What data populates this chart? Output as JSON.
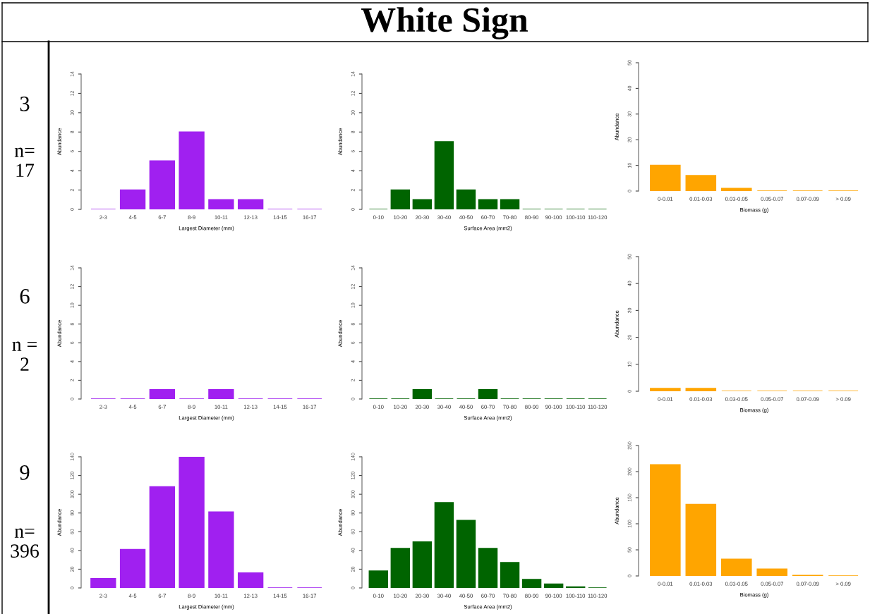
{
  "chart_data": [
    {
      "type": "bar",
      "annotations": [
        "3",
        "n= 17"
      ],
      "categories": [
        "2-3",
        "4-5",
        "6-7",
        "8-9",
        "10-11",
        "12-13",
        "14-15",
        "16-17"
      ],
      "values": [
        0,
        2,
        5,
        8,
        1,
        1,
        0,
        0
      ],
      "color": "#a020f0",
      "ylim": [
        0,
        14
      ],
      "yticks": [
        0,
        2,
        4,
        6,
        8,
        10,
        12,
        14
      ],
      "xlabel": "Largest Diameter (mm)",
      "ylabel": "Abundance"
    },
    {
      "type": "bar",
      "title": "White Sign",
      "categories": [
        "0-10",
        "10-20",
        "20-30",
        "30-40",
        "40-50",
        "60-70",
        "70-80",
        "80-90",
        "90-100",
        "100-110",
        "110-120"
      ],
      "values": [
        0,
        2,
        1,
        7,
        2,
        1,
        1,
        0,
        0,
        0,
        0
      ],
      "color": "#006400",
      "ylim": [
        0,
        14
      ],
      "yticks": [
        0,
        2,
        4,
        6,
        8,
        10,
        12,
        14
      ],
      "xlabel": "Surface Area (mm2)",
      "ylabel": "Abundance"
    },
    {
      "type": "bar",
      "categories": [
        "0-0.01",
        "0.01-0.03",
        "0.03-0.05",
        "0.05-0.07",
        "0.07-0.09",
        "> 0.09"
      ],
      "values": [
        10,
        6,
        1,
        0,
        0,
        0
      ],
      "color": "#ffa500",
      "ylim": [
        0,
        50
      ],
      "yticks": [
        0,
        10,
        20,
        30,
        40,
        50
      ],
      "xlabel": "Biomass (g)",
      "ylabel": "Abundance"
    },
    {
      "type": "bar",
      "annotations": [
        "6",
        "n = 2"
      ],
      "categories": [
        "2-3",
        "4-5",
        "6-7",
        "8-9",
        "10-11",
        "12-13",
        "14-15",
        "16-17"
      ],
      "values": [
        0,
        0,
        1,
        0,
        1,
        0,
        0,
        0
      ],
      "color": "#a020f0",
      "ylim": [
        0,
        14
      ],
      "yticks": [
        0,
        2,
        4,
        6,
        8,
        10,
        12,
        14
      ],
      "xlabel": "Largest Diameter (mm)",
      "ylabel": "Abundance"
    },
    {
      "type": "bar",
      "categories": [
        "0-10",
        "10-20",
        "20-30",
        "30-40",
        "40-50",
        "60-70",
        "70-80",
        "80-90",
        "90-100",
        "100-110",
        "110-120"
      ],
      "values": [
        0,
        0,
        1,
        0,
        0,
        1,
        0,
        0,
        0,
        0,
        0
      ],
      "color": "#006400",
      "ylim": [
        0,
        14
      ],
      "yticks": [
        0,
        2,
        4,
        6,
        8,
        10,
        12,
        14
      ],
      "xlabel": "Surface Area (mm2)",
      "ylabel": "Abundance"
    },
    {
      "type": "bar",
      "categories": [
        "0-0.01",
        "0.01-0.03",
        "0.03-0.05",
        "0.05-0.07",
        "0.07-0.09",
        "> 0.09"
      ],
      "values": [
        1,
        1,
        0,
        0,
        0,
        0
      ],
      "color": "#ffa500",
      "ylim": [
        0,
        50
      ],
      "yticks": [
        0,
        10,
        20,
        30,
        40,
        50
      ],
      "xlabel": "Biomass (g)",
      "ylabel": "Abundance"
    },
    {
      "type": "bar",
      "annotations": [
        "9",
        "n= 396"
      ],
      "categories": [
        "2-3",
        "4-5",
        "6-7",
        "8-9",
        "10-11",
        "12-13",
        "14-15",
        "16-17"
      ],
      "values": [
        10,
        41,
        108,
        140,
        81,
        16,
        0,
        0
      ],
      "color": "#a020f0",
      "ylim": [
        0,
        140
      ],
      "yticks": [
        0,
        20,
        40,
        60,
        80,
        100,
        120,
        140
      ],
      "xlabel": "Largest Diameter (mm)",
      "ylabel": "Abundance"
    },
    {
      "type": "bar",
      "categories": [
        "0-10",
        "10-20",
        "20-30",
        "30-40",
        "40-50",
        "60-70",
        "70-80",
        "80-90",
        "90-100",
        "100-110",
        "110-120"
      ],
      "values": [
        18,
        42,
        49,
        91,
        72,
        42,
        27,
        9,
        4,
        1,
        0
      ],
      "color": "#006400",
      "ylim": [
        0,
        140
      ],
      "yticks": [
        0,
        20,
        40,
        60,
        80,
        100,
        120,
        140
      ],
      "xlabel": "Surface Area (mm2)",
      "ylabel": "Abundance"
    },
    {
      "type": "bar",
      "categories": [
        "0-0.01",
        "0.01-0.03",
        "0.03-0.05",
        "0.05-0.07",
        "0.07-0.09",
        "> 0.09"
      ],
      "values": [
        213,
        137,
        32,
        13,
        1,
        0
      ],
      "color": "#ffa500",
      "ylim": [
        0,
        250
      ],
      "yticks": [
        0,
        50,
        100,
        150,
        200,
        250
      ],
      "xlabel": "Biomass (g)",
      "ylabel": "Abundance"
    }
  ]
}
